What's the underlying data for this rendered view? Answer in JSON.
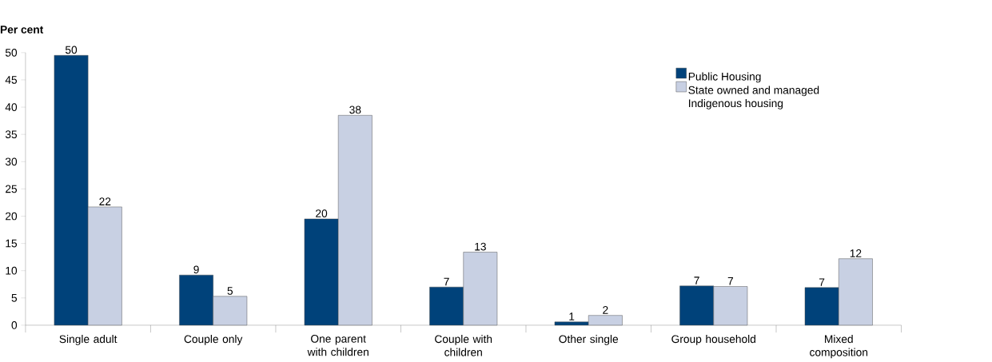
{
  "chart_data": {
    "type": "bar",
    "ylabel": "Per cent",
    "categories": [
      "Single adult",
      "Couple only",
      "One parent with children",
      "Couple with children",
      "Other single",
      "Group household",
      "Mixed composition"
    ],
    "series": [
      {
        "name": "Public Housing",
        "color": "#00427a",
        "values": [
          49.5,
          9.2,
          19.5,
          7.0,
          0.6,
          7.2,
          6.9
        ],
        "value_labels": [
          "50",
          "9",
          "20",
          "7",
          "1",
          "7",
          "7"
        ]
      },
      {
        "name": "State owned and managed Indigenous housing",
        "color": "#c8d0e3",
        "values": [
          21.7,
          5.3,
          38.5,
          13.4,
          1.8,
          7.1,
          12.2
        ],
        "value_labels": [
          "22",
          "5",
          "38",
          "13",
          "2",
          "7",
          "12"
        ]
      }
    ],
    "ylim": [
      0,
      50
    ],
    "yticks": [
      0,
      5,
      10,
      15,
      20,
      25,
      30,
      35,
      40,
      45,
      50
    ],
    "grid": false,
    "legend": "top right"
  }
}
